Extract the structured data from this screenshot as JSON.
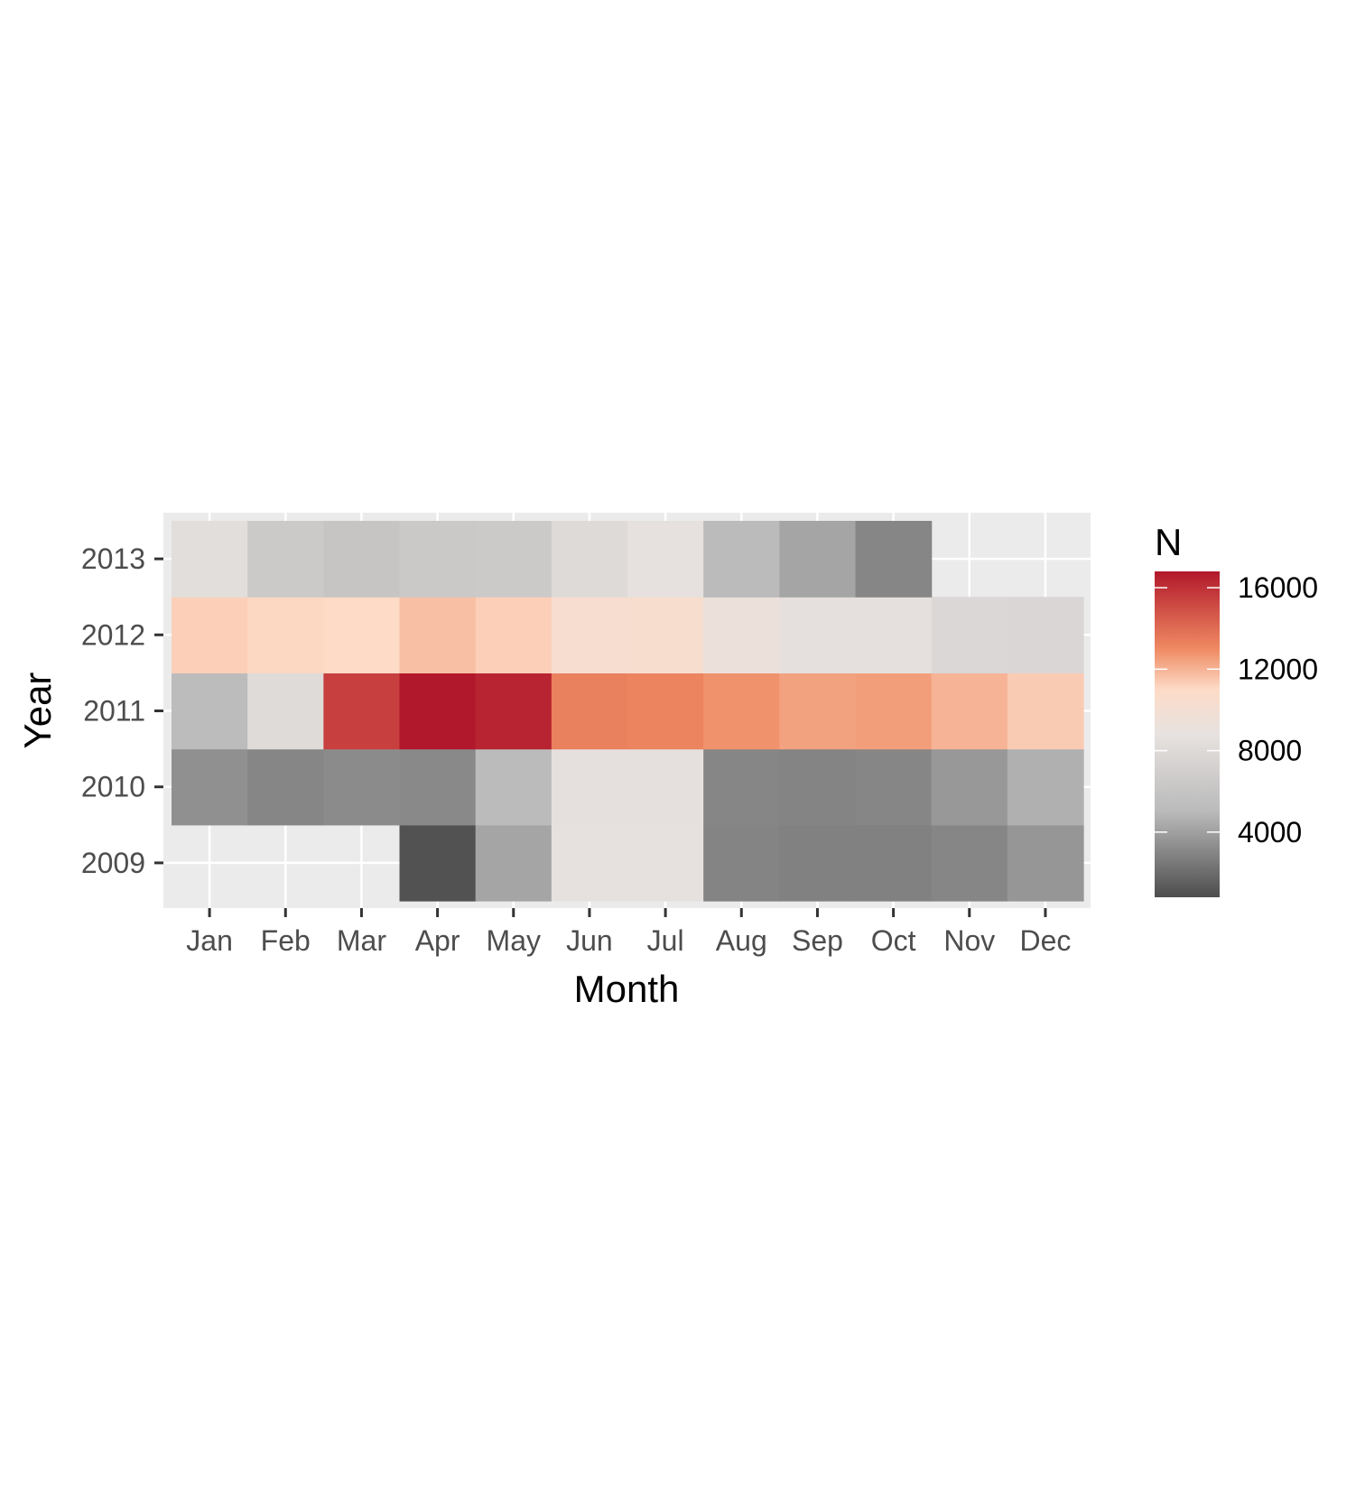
{
  "chart_data": {
    "type": "heatmap",
    "title": "",
    "xlabel": "Month",
    "ylabel": "Year",
    "x_categories": [
      "Jan",
      "Feb",
      "Mar",
      "Apr",
      "May",
      "Jun",
      "Jul",
      "Aug",
      "Sep",
      "Oct",
      "Nov",
      "Dec"
    ],
    "y_categories": [
      "2009",
      "2010",
      "2011",
      "2012",
      "2013"
    ],
    "values": {
      "2013": [
        8400,
        6500,
        6000,
        6400,
        6500,
        8000,
        8700,
        5100,
        4200,
        3000,
        null,
        null
      ],
      "2012": [
        11300,
        11100,
        11000,
        11700,
        11300,
        10300,
        10400,
        9300,
        8600,
        8600,
        7800,
        7700
      ],
      "2011": [
        5200,
        8100,
        15500,
        17200,
        16400,
        13300,
        13200,
        12800,
        12400,
        12500,
        12000,
        11400
      ],
      "2010": [
        3400,
        3000,
        3200,
        3100,
        5100,
        8600,
        8600,
        3000,
        2900,
        3000,
        3700,
        4600
      ],
      "2009": [
        null,
        null,
        null,
        1000,
        4200,
        8700,
        8700,
        2900,
        2800,
        2800,
        3000,
        3600
      ]
    },
    "legend": {
      "title": "N",
      "position": "right",
      "ticks": [
        "4000",
        "8000",
        "12000",
        "16000"
      ],
      "range": [
        800,
        16800
      ],
      "low_color": "#4d4d4d",
      "mid_color": "#e7e2e0",
      "high_color": "#b2182b",
      "gradient_stops": [
        {
          "value": 800,
          "color": "#4d4d4d"
        },
        {
          "value": 5000,
          "color": "#bababa"
        },
        {
          "value": 8800,
          "color": "#e7e2e0"
        },
        {
          "value": 11000,
          "color": "#fddbc7"
        },
        {
          "value": 13000,
          "color": "#ef8a62"
        },
        {
          "value": 16800,
          "color": "#b2182b"
        }
      ]
    },
    "panel_background": "#ebebeb",
    "grid": true
  }
}
